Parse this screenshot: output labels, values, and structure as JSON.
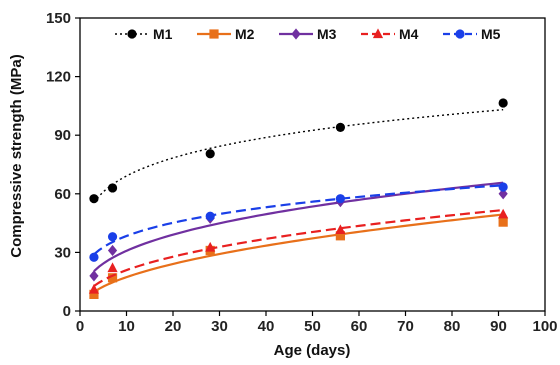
{
  "chart_data": {
    "type": "line",
    "xlabel": "Age (days)",
    "ylabel": "Compressive strength (MPa)",
    "xlim": [
      0,
      100
    ],
    "ylim": [
      0,
      150
    ],
    "x_ticks": [
      "0",
      "10",
      "20",
      "30",
      "40",
      "50",
      "60",
      "70",
      "80",
      "90",
      "100"
    ],
    "y_ticks": [
      "0",
      "30",
      "60",
      "90",
      "120",
      "150"
    ],
    "grid": false,
    "legend_position": "top",
    "series": [
      {
        "name": "M1",
        "color": "#000000",
        "line_style": "dotted",
        "marker": "circle",
        "points": [
          [
            3,
            57.5
          ],
          [
            7,
            63
          ],
          [
            28,
            80.5
          ],
          [
            56,
            94
          ],
          [
            91,
            106.5
          ]
        ]
      },
      {
        "name": "M2",
        "color": "#E8701A",
        "line_style": "solid",
        "marker": "square",
        "points": [
          [
            3,
            8.5
          ],
          [
            7,
            17
          ],
          [
            28,
            31
          ],
          [
            56,
            38.5
          ],
          [
            91,
            45.5
          ]
        ]
      },
      {
        "name": "M3",
        "color": "#7030A0",
        "line_style": "solid",
        "marker": "diamond",
        "points": [
          [
            3,
            18
          ],
          [
            7,
            31
          ],
          [
            28,
            47.5
          ],
          [
            56,
            56
          ],
          [
            91,
            60
          ]
        ]
      },
      {
        "name": "M4",
        "color": "#E82020",
        "line_style": "dashed",
        "marker": "triangle",
        "points": [
          [
            3,
            11
          ],
          [
            7,
            22
          ],
          [
            28,
            32.5
          ],
          [
            56,
            41.5
          ],
          [
            91,
            49.5
          ]
        ]
      },
      {
        "name": "M5",
        "color": "#1A3FE8",
        "line_style": "dashed",
        "marker": "circle",
        "points": [
          [
            3,
            27.5
          ],
          [
            7,
            38
          ],
          [
            28,
            48.5
          ],
          [
            56,
            57.5
          ],
          [
            91,
            63.5
          ]
        ]
      }
    ]
  }
}
